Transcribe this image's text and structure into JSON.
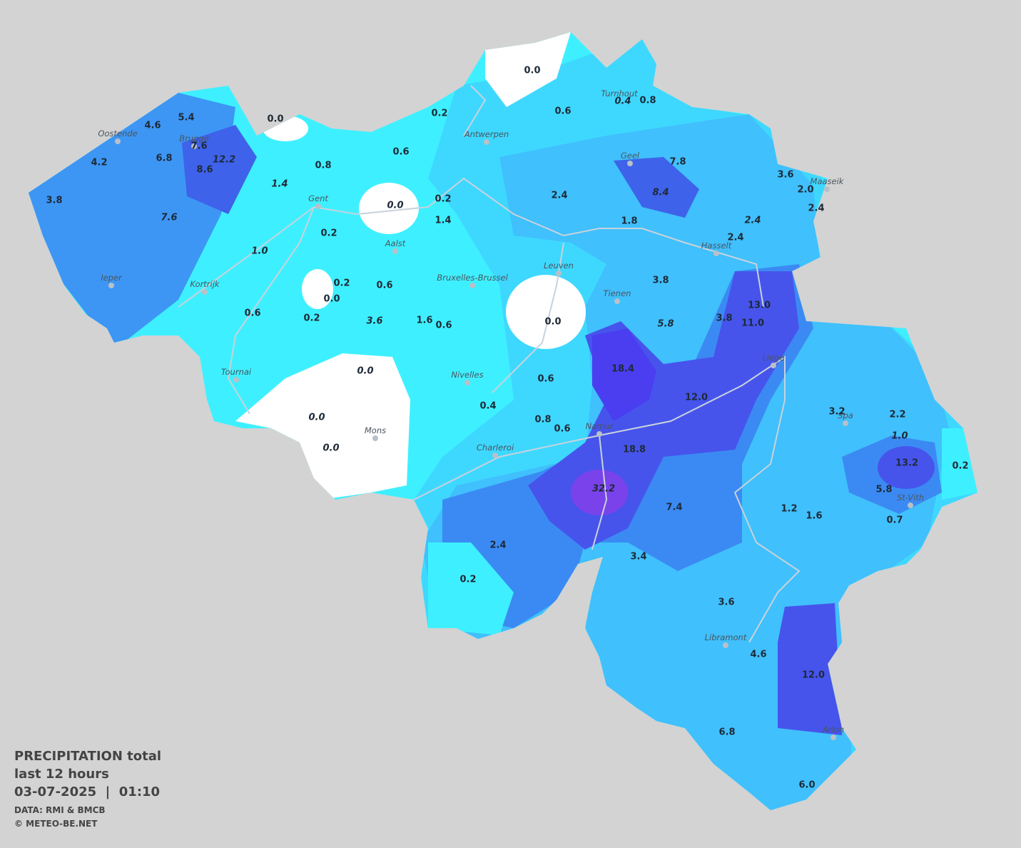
{
  "legend": {
    "title": "PRECIPITATION total",
    "period": "last 12 hours",
    "datetime": "03-07-2025  |  01:10",
    "source": "DATA: RMI & BMCB",
    "copyright": "© METEO-BE.NET"
  },
  "cities": [
    "Oostende",
    "Brugge",
    "Gent",
    "Antwerpen",
    "Turnhout",
    "Geel",
    "Maaseik",
    "Hasselt",
    "Aalst",
    "Leuven",
    "Bruxelles-Brussel",
    "Tienen",
    "Ieper",
    "Kortrijk",
    "Liege",
    "Tournai",
    "Nivelles",
    "Spa",
    "Mons",
    "Namur",
    "Charleroi",
    "St-Vith",
    "Libramont",
    "Arlon"
  ],
  "readings": [
    {
      "text": "0.0"
    },
    {
      "text": "0.2"
    },
    {
      "text": "0.6"
    },
    {
      "text": "0.4",
      "italic": true
    },
    {
      "text": "0.8"
    },
    {
      "text": "0.0"
    },
    {
      "text": "5.4"
    },
    {
      "text": "4.6"
    },
    {
      "text": "7.6"
    },
    {
      "text": "12.2",
      "italic": true
    },
    {
      "text": "8.6"
    },
    {
      "text": "6.8"
    },
    {
      "text": "4.2"
    },
    {
      "text": "3.8"
    },
    {
      "text": "7.6",
      "italic": true
    },
    {
      "text": "0.6"
    },
    {
      "text": "0.8"
    },
    {
      "text": "1.4",
      "italic": true
    },
    {
      "text": "0.0",
      "italic": true
    },
    {
      "text": "0.2"
    },
    {
      "text": "1.4"
    },
    {
      "text": "2.4"
    },
    {
      "text": "7.8"
    },
    {
      "text": "8.4",
      "italic": true
    },
    {
      "text": "3.6"
    },
    {
      "text": "2.0"
    },
    {
      "text": "2.4"
    },
    {
      "text": "2.4",
      "italic": true
    },
    {
      "text": "2.4"
    },
    {
      "text": "1.8"
    },
    {
      "text": "0.2"
    },
    {
      "text": "1.0",
      "italic": true
    },
    {
      "text": "0.2"
    },
    {
      "text": "0.0"
    },
    {
      "text": "0.6"
    },
    {
      "text": "3.6",
      "italic": true
    },
    {
      "text": "1.6"
    },
    {
      "text": "0.6"
    },
    {
      "text": "0.6"
    },
    {
      "text": "0.2"
    },
    {
      "text": "0.0"
    },
    {
      "text": "3.8"
    },
    {
      "text": "5.8",
      "italic": true
    },
    {
      "text": "3.8"
    },
    {
      "text": "13.0"
    },
    {
      "text": "11.0"
    },
    {
      "text": "18.4"
    },
    {
      "text": "12.0"
    },
    {
      "text": "0.0",
      "italic": true
    },
    {
      "text": "0.0",
      "italic": true
    },
    {
      "text": "0.0",
      "italic": true
    },
    {
      "text": "0.6"
    },
    {
      "text": "0.4"
    },
    {
      "text": "0.8"
    },
    {
      "text": "0.6"
    },
    {
      "text": "18.8"
    },
    {
      "text": "32.2",
      "italic": true
    },
    {
      "text": "7.4"
    },
    {
      "text": "3.2"
    },
    {
      "text": "2.2"
    },
    {
      "text": "1.0",
      "italic": true
    },
    {
      "text": "13.2"
    },
    {
      "text": "0.2"
    },
    {
      "text": "5.8"
    },
    {
      "text": "0.7"
    },
    {
      "text": "1.2"
    },
    {
      "text": "1.6"
    },
    {
      "text": "2.4"
    },
    {
      "text": "3.4"
    },
    {
      "text": "0.2"
    },
    {
      "text": "3.6"
    },
    {
      "text": "4.6"
    },
    {
      "text": "12.0"
    },
    {
      "text": "6.8"
    },
    {
      "text": "6.0"
    }
  ]
}
